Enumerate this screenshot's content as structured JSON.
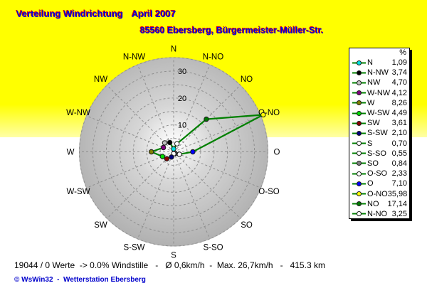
{
  "header": {
    "title": "Verteilung Windrichtung",
    "period": "April 2007",
    "station": "85560 Ebersberg, Bürgermeister-Müller-Str."
  },
  "legend": {
    "header": "%"
  },
  "chart_data": {
    "type": "radar",
    "title": "Verteilung Windrichtung April 2007",
    "subtitle": "85560 Ebersberg, Bürgermeister-Müller-Str.",
    "units": "%",
    "orientation": "compass, N top, clockwise, O = east",
    "axis": {
      "max": 35,
      "grid_step": 5,
      "tick_labels": [
        10,
        20,
        30
      ]
    },
    "line_color": "#008000",
    "grid_color": "#8f8f8f",
    "directions": [
      {
        "label": "N",
        "angle_deg": 0,
        "value": 1.09,
        "display": "1,09",
        "marker_color": "#00e0e0"
      },
      {
        "label": "N-NW",
        "angle_deg": 337.5,
        "value": 3.74,
        "display": "3,74",
        "marker_color": "#000000"
      },
      {
        "label": "NW",
        "angle_deg": 315,
        "value": 4.7,
        "display": "4,70",
        "marker_color": "#c0c0c0"
      },
      {
        "label": "W-NW",
        "angle_deg": 292.5,
        "value": 4.12,
        "display": "4,12",
        "marker_color": "#800080"
      },
      {
        "label": "W",
        "angle_deg": 270,
        "value": 8.26,
        "display": "8,26",
        "marker_color": "#808000"
      },
      {
        "label": "W-SW",
        "angle_deg": 247.5,
        "value": 4.49,
        "display": "4,49",
        "marker_color": "#00dd00"
      },
      {
        "label": "SW",
        "angle_deg": 225,
        "value": 3.61,
        "display": "3,61",
        "marker_color": "#8b0000"
      },
      {
        "label": "S-SW",
        "angle_deg": 202.5,
        "value": 2.1,
        "display": "2,10",
        "marker_color": "#000080"
      },
      {
        "label": "S",
        "angle_deg": 180,
        "value": 0.7,
        "display": "0,70",
        "marker_color": "#ffffff"
      },
      {
        "label": "S-SO",
        "angle_deg": 157.5,
        "value": 0.55,
        "display": "0,55",
        "marker_color": "#ffffff"
      },
      {
        "label": "SO",
        "angle_deg": 135,
        "value": 0.84,
        "display": "0,84",
        "marker_color": "#808080"
      },
      {
        "label": "O-SO",
        "angle_deg": 112.5,
        "value": 2.33,
        "display": "2,33",
        "marker_color": "#ffffff"
      },
      {
        "label": "O",
        "angle_deg": 90,
        "value": 7.1,
        "display": "7,10",
        "marker_color": "#0000ff"
      },
      {
        "label": "O-NO",
        "angle_deg": 67.5,
        "value": 35.98,
        "display": "35,98",
        "marker_color": "#ffff00"
      },
      {
        "label": "NO",
        "angle_deg": 45,
        "value": 17.14,
        "display": "17,14",
        "marker_color": "#007800"
      },
      {
        "label": "N-NO",
        "angle_deg": 22.5,
        "value": 3.25,
        "display": "3,25",
        "marker_color": "#ffffff"
      }
    ]
  },
  "footer": {
    "status": "19044 / 0 Werte  -> 0.0% Windstille   -   Ø 0,6km/h  -  Max. 26,7km/h   -   415.3 km",
    "copyright": "© WsWin32  -  Wetterstation Ebersberg"
  }
}
